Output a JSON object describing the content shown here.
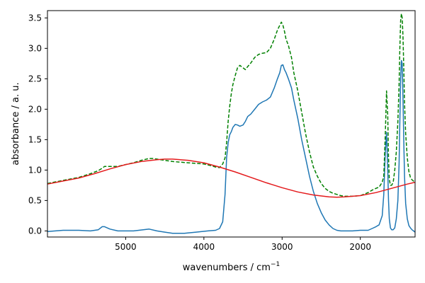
{
  "chart_data": {
    "type": "line",
    "title": "",
    "xlabel": "wavenumbers / cm",
    "xlabel_superscript": "−1",
    "ylabel": "absorbance / a. u.",
    "xlim": [
      6000,
      1300
    ],
    "ylim": [
      -0.1,
      3.62
    ],
    "x_reversed": true,
    "x_ticks": [
      5000,
      4000,
      3000,
      2000
    ],
    "y_ticks": [
      0.0,
      0.5,
      1.0,
      1.5,
      2.0,
      2.5,
      3.0,
      3.5
    ],
    "y_tick_labels": [
      "0.0",
      "0.5",
      "1.0",
      "1.5",
      "2.0",
      "2.5",
      "3.0",
      "3.5"
    ],
    "grid": false,
    "series": [
      {
        "color": "#1f77b4",
        "style": "solid",
        "x": [
          6000,
          5800,
          5600,
          5450,
          5350,
          5300,
          5270,
          5200,
          5100,
          4900,
          4700,
          4600,
          4500,
          4400,
          4250,
          4100,
          3950,
          3850,
          3800,
          3760,
          3730,
          3710,
          3690,
          3670,
          3650,
          3630,
          3600,
          3570,
          3540,
          3500,
          3470,
          3440,
          3400,
          3350,
          3300,
          3250,
          3200,
          3150,
          3100,
          3060,
          3030,
          3010,
          2990,
          2970,
          2950,
          2920,
          2880,
          2850,
          2800,
          2750,
          2700,
          2650,
          2600,
          2550,
          2500,
          2450,
          2400,
          2350,
          2300,
          2250,
          2200,
          2100,
          2000,
          1900,
          1850,
          1800,
          1760,
          1720,
          1700,
          1680,
          1665,
          1650,
          1640,
          1630,
          1615,
          1600,
          1580,
          1560,
          1540,
          1520,
          1505,
          1495,
          1485,
          1475,
          1465,
          1455,
          1445,
          1435,
          1420,
          1400,
          1380,
          1360,
          1340,
          1320,
          1300
        ],
        "y": [
          -0.01,
          0.01,
          0.01,
          0.0,
          0.02,
          0.07,
          0.07,
          0.03,
          0.0,
          0.0,
          0.03,
          0.0,
          -0.02,
          -0.04,
          -0.04,
          -0.02,
          0.0,
          0.01,
          0.04,
          0.15,
          0.6,
          1.2,
          1.45,
          1.58,
          1.63,
          1.7,
          1.75,
          1.74,
          1.72,
          1.74,
          1.8,
          1.88,
          1.92,
          2.0,
          2.08,
          2.12,
          2.15,
          2.2,
          2.35,
          2.5,
          2.6,
          2.72,
          2.73,
          2.65,
          2.6,
          2.5,
          2.35,
          2.15,
          1.85,
          1.5,
          1.2,
          0.9,
          0.65,
          0.45,
          0.3,
          0.18,
          0.1,
          0.04,
          0.01,
          0.0,
          0.0,
          0.0,
          0.01,
          0.01,
          0.04,
          0.07,
          0.1,
          0.25,
          0.6,
          1.3,
          1.62,
          1.0,
          0.5,
          0.2,
          0.05,
          0.02,
          0.02,
          0.05,
          0.2,
          0.5,
          1.1,
          1.8,
          2.5,
          2.8,
          2.75,
          2.2,
          1.5,
          0.9,
          0.45,
          0.2,
          0.09,
          0.05,
          0.02,
          0.0,
          -0.02
        ]
      },
      {
        "color": "#008000",
        "style": "dashed",
        "x": [
          6000,
          5800,
          5600,
          5450,
          5350,
          5300,
          5270,
          5200,
          5100,
          5000,
          4900,
          4800,
          4700,
          4650,
          4600,
          4500,
          4400,
          4300,
          4200,
          4100,
          4000,
          3900,
          3850,
          3800,
          3760,
          3730,
          3710,
          3690,
          3670,
          3650,
          3630,
          3600,
          3570,
          3540,
          3500,
          3470,
          3440,
          3400,
          3350,
          3300,
          3250,
          3200,
          3150,
          3100,
          3060,
          3030,
          3010,
          2990,
          2970,
          2950,
          2920,
          2880,
          2850,
          2800,
          2750,
          2700,
          2650,
          2600,
          2550,
          2500,
          2450,
          2400,
          2350,
          2300,
          2250,
          2200,
          2100,
          2000,
          1900,
          1850,
          1800,
          1760,
          1720,
          1700,
          1680,
          1665,
          1650,
          1640,
          1630,
          1615,
          1600,
          1580,
          1560,
          1540,
          1520,
          1505,
          1495,
          1485,
          1475,
          1465,
          1455,
          1445,
          1435,
          1420,
          1400,
          1380,
          1360,
          1340,
          1320,
          1300
        ],
        "y": [
          0.78,
          0.83,
          0.88,
          0.94,
          0.99,
          1.03,
          1.06,
          1.06,
          1.06,
          1.09,
          1.12,
          1.16,
          1.19,
          1.19,
          1.18,
          1.16,
          1.14,
          1.13,
          1.12,
          1.11,
          1.1,
          1.07,
          1.05,
          1.04,
          1.1,
          1.2,
          1.45,
          1.8,
          2.05,
          2.25,
          2.4,
          2.55,
          2.68,
          2.72,
          2.68,
          2.65,
          2.7,
          2.76,
          2.85,
          2.9,
          2.92,
          2.93,
          3.0,
          3.15,
          3.3,
          3.38,
          3.43,
          3.38,
          3.28,
          3.15,
          3.05,
          2.85,
          2.6,
          2.3,
          1.95,
          1.6,
          1.3,
          1.05,
          0.9,
          0.78,
          0.7,
          0.65,
          0.62,
          0.6,
          0.58,
          0.57,
          0.57,
          0.58,
          0.63,
          0.67,
          0.7,
          0.72,
          0.8,
          0.9,
          1.6,
          2.3,
          1.9,
          1.2,
          0.85,
          0.75,
          0.75,
          0.8,
          1.0,
          1.3,
          1.8,
          2.4,
          3.0,
          3.45,
          3.57,
          3.5,
          3.2,
          2.7,
          2.1,
          1.6,
          1.2,
          0.98,
          0.88,
          0.84,
          0.82,
          0.8
        ]
      },
      {
        "color": "#e41a1c",
        "style": "solid",
        "x": [
          6000,
          5800,
          5600,
          5400,
          5200,
          5000,
          4800,
          4600,
          4500,
          4400,
          4200,
          4000,
          3800,
          3600,
          3400,
          3200,
          3000,
          2800,
          2600,
          2400,
          2300,
          2200,
          2000,
          1800,
          1600,
          1400,
          1300
        ],
        "y": [
          0.77,
          0.82,
          0.87,
          0.94,
          1.02,
          1.09,
          1.14,
          1.17,
          1.18,
          1.18,
          1.16,
          1.12,
          1.05,
          0.97,
          0.88,
          0.79,
          0.71,
          0.64,
          0.59,
          0.56,
          0.555,
          0.56,
          0.58,
          0.63,
          0.7,
          0.77,
          0.8
        ]
      }
    ]
  }
}
